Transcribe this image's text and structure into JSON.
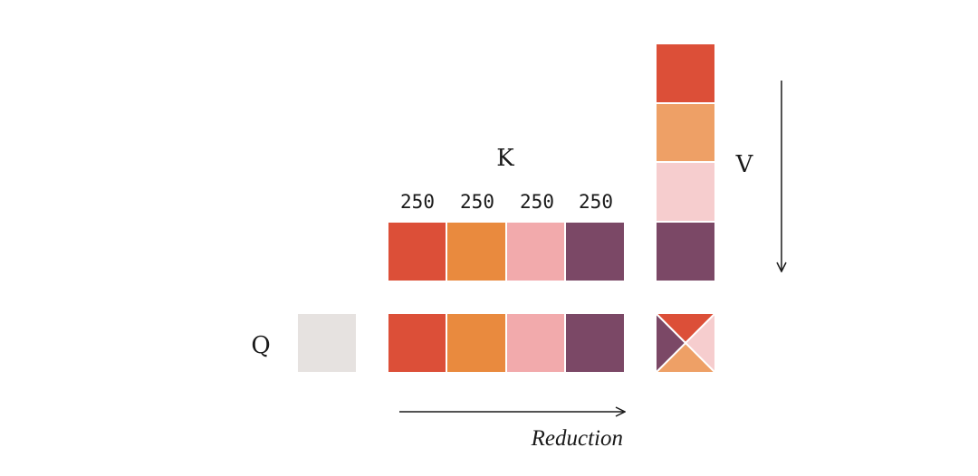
{
  "labels": {
    "k": "K",
    "v": "V",
    "q": "Q",
    "reduction": "Reduction"
  },
  "k_block_sizes": [
    "250",
    "250",
    "250",
    "250"
  ],
  "colors": {
    "red": "#DC4F38",
    "orange": "#E98A3E",
    "pink": "#F2AAAC",
    "plum": "#7B4866",
    "q_gray": "#E6E2E0",
    "v_orange": "#EEA066",
    "v_pink": "#F6CDCE",
    "output_orange": "#EEA066",
    "output_pink": "#F6CDCE"
  },
  "k_blocks": [
    "red",
    "orange",
    "pink",
    "plum"
  ],
  "v_blocks": [
    "red",
    "v_orange",
    "v_pink",
    "plum"
  ],
  "qk_blocks": [
    "red",
    "orange",
    "pink",
    "plum"
  ],
  "output_triangles": [
    "red",
    "output_pink",
    "output_orange",
    "plum"
  ]
}
